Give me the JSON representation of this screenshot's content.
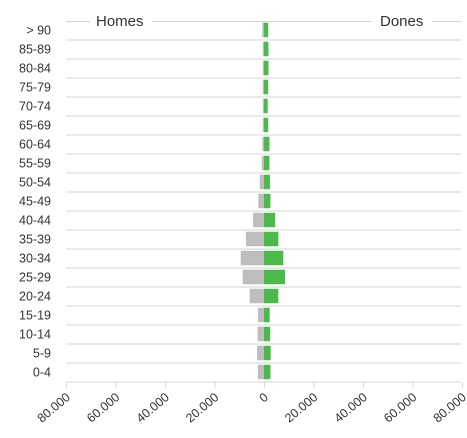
{
  "chart_data": {
    "type": "bar",
    "orientation": "horizontal-diverging",
    "categories": [
      "0-4",
      "5-9",
      "10-14",
      "15-19",
      "20-24",
      "25-29",
      "30-34",
      "35-39",
      "40-44",
      "45-49",
      "50-54",
      "55-59",
      "60-64",
      "65-69",
      "70-74",
      "75-79",
      "80-84",
      "85-89",
      "> 90"
    ],
    "series": [
      {
        "name": "Homes",
        "color": "#bdbdbd",
        "values": [
          2500,
          2800,
          2600,
          2400,
          5800,
          8600,
          9400,
          7300,
          4400,
          2300,
          1700,
          900,
          700,
          500,
          500,
          500,
          500,
          500,
          700
        ]
      },
      {
        "name": "Dones",
        "color": "#4cba4a",
        "values": [
          2600,
          2700,
          2500,
          2300,
          5800,
          8500,
          7800,
          5800,
          4500,
          2600,
          2400,
          2200,
          2200,
          1700,
          1500,
          1700,
          1800,
          1800,
          1700
        ]
      }
    ],
    "xlim": [
      -80000,
      80000
    ],
    "x_ticks": [
      -80000,
      -60000,
      -40000,
      -20000,
      0,
      20000,
      40000,
      60000,
      80000
    ],
    "x_tick_labels": [
      "80.000",
      "60.000",
      "40.000",
      "20.000",
      "0",
      "20.000",
      "40.000",
      "60.000",
      "80.000"
    ],
    "grid": true,
    "legend": "top"
  }
}
